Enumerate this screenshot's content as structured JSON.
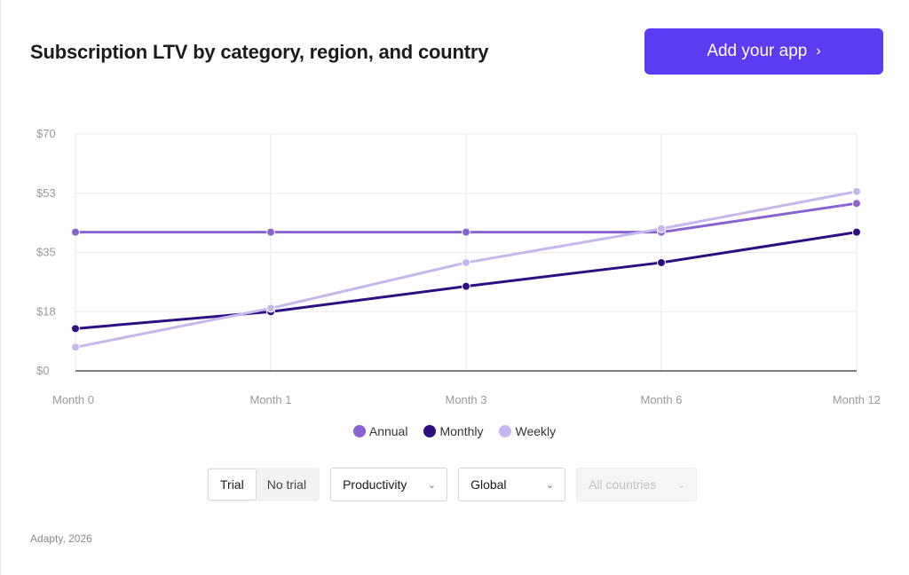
{
  "header": {
    "title": "Subscription LTV by category, region, and country",
    "cta_label": "Add your app",
    "cta_icon": "chevron-right-icon",
    "cta_color": "#5b3cf2"
  },
  "chart_data": {
    "type": "line",
    "categories": [
      "Month 0",
      "Month 1",
      "Month 3",
      "Month 6",
      "Month 12"
    ],
    "y_ticks": [
      "$0",
      "$18",
      "$35",
      "$53",
      "$70"
    ],
    "ylim": [
      0,
      70
    ],
    "grid": true,
    "legend_position": "bottom",
    "series": [
      {
        "name": "Annual",
        "color": "#8a63d2",
        "values": [
          41,
          41,
          41,
          41,
          49.5
        ]
      },
      {
        "name": "Monthly",
        "color": "#2e0f82",
        "values": [
          12.5,
          17.5,
          25,
          32,
          41
        ]
      },
      {
        "name": "Weekly",
        "color": "#c6b8ee",
        "values": [
          7,
          18.5,
          32,
          42,
          53
        ]
      }
    ]
  },
  "controls": {
    "trial_toggle": {
      "options": [
        "Trial",
        "No trial"
      ],
      "selected": "Trial"
    },
    "category_select": "Productivity",
    "region_select": "Global",
    "country_select": "All countries"
  },
  "footer": {
    "source": "Adapty, 2026"
  }
}
